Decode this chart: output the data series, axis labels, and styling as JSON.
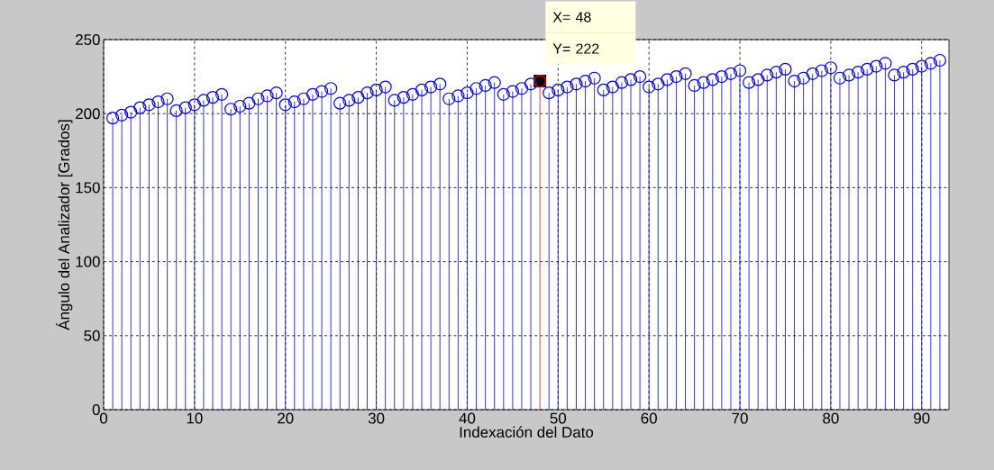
{
  "chart_data": {
    "type": "lollipop",
    "xlabel": "Indexación del Dato",
    "ylabel": "Ángulo del Analizador [Grados]",
    "annotations": [
      "X= 48",
      {
        "text": "Y= 222",
        "x": 48,
        "y": 222
      }
    ],
    "x": [
      1,
      2,
      3,
      4,
      5,
      6,
      7,
      8,
      9,
      10,
      11,
      12,
      13,
      14,
      15,
      16,
      17,
      18,
      19,
      20,
      21,
      22,
      23,
      24,
      25,
      26,
      27,
      28,
      29,
      30,
      31,
      32,
      33,
      34,
      35,
      36,
      37,
      38,
      39,
      40,
      41,
      42,
      43,
      44,
      45,
      46,
      47,
      48,
      49,
      50,
      51,
      52,
      53,
      54,
      55,
      56,
      57,
      58,
      59,
      60,
      61,
      62,
      63,
      64,
      65,
      66,
      67,
      68,
      69,
      70,
      71,
      72,
      73,
      74,
      75,
      76,
      77,
      78,
      79,
      80,
      81,
      82,
      83,
      84,
      85,
      86,
      87,
      88,
      89,
      90,
      91,
      92
    ],
    "values": [
      197,
      199,
      201,
      204,
      206,
      208,
      210,
      202,
      204,
      206,
      209,
      211,
      213,
      203,
      205,
      207,
      210,
      212,
      214,
      206,
      208,
      210,
      213,
      215,
      217,
      207,
      209,
      211,
      214,
      216,
      218,
      209,
      211,
      213,
      216,
      218,
      220,
      210,
      212,
      214,
      217,
      219,
      221,
      213,
      215,
      217,
      220,
      222,
      214,
      216,
      218,
      220,
      222,
      224,
      216,
      218,
      221,
      223,
      225,
      218,
      220,
      223,
      225,
      227,
      219,
      221,
      223,
      225,
      227,
      229,
      221,
      223,
      226,
      228,
      230,
      222,
      224,
      227,
      229,
      231,
      224,
      226,
      228,
      230,
      232,
      234,
      226,
      228,
      230,
      232,
      234,
      236
    ],
    "colors": [
      "#0000ff",
      "#0000ff",
      "#0000ff",
      "#0000ff",
      "#0000ff",
      "#0000ff",
      "#0000ff",
      "#0000ff",
      "#0000ff",
      "#0000ff",
      "#0000ff",
      "#0000ff",
      "#0000ff",
      "#0000ff",
      "#0000ff",
      "#0000ff",
      "#0000ff",
      "#0000ff",
      "#0000ff",
      "#0000ff",
      "#0000ff",
      "#0000ff",
      "#0000ff",
      "#0000ff",
      "#0000ff",
      "#0000ff",
      "#0000ff",
      "#0000ff",
      "#0000ff",
      "#0000ff",
      "#0000ff",
      "#0000ff",
      "#0000ff",
      "#0000ff",
      "#0000ff",
      "#0000ff",
      "#0000ff",
      "#0000ff",
      "#0000ff",
      "#0000ff",
      "#0000ff",
      "#0000ff",
      "#0000ff",
      "#0000ff",
      "#0000ff",
      "#0000ff",
      "#0000ff",
      "#ff0000",
      "#0000ff",
      "#0000ff",
      "#0000ff",
      "#0000ff",
      "#0000ff",
      "#0000ff",
      "#0000ff",
      "#0000ff",
      "#0000ff",
      "#0000ff",
      "#0000ff",
      "#0000ff",
      "#0000ff",
      "#0000ff",
      "#0000ff",
      "#0000ff",
      "#0000ff",
      "#0000ff",
      "#0000ff",
      "#0000ff",
      "#0000ff",
      "#0000ff",
      "#0000ff",
      "#0000ff",
      "#0000ff",
      "#0000ff",
      "#0000ff",
      "#0000ff",
      "#0000ff",
      "#0000ff",
      "#0000ff",
      "#0000ff",
      "#0000ff",
      "#0000ff",
      "#0000ff",
      "#0000ff",
      "#0000ff",
      "#0000ff",
      "#0000ff",
      "#0000ff",
      "#0000ff",
      "#0000ff",
      "#0000ff",
      "#0000ff"
    ],
    "marker": "circle",
    "xlim": [
      0,
      93
    ],
    "xticks": [
      0,
      10,
      20,
      30,
      40,
      50,
      60,
      70,
      80,
      90
    ],
    "ylim": [
      0,
      250
    ],
    "yticks": [
      0,
      50,
      100,
      150,
      200,
      250
    ],
    "grid": true
  }
}
